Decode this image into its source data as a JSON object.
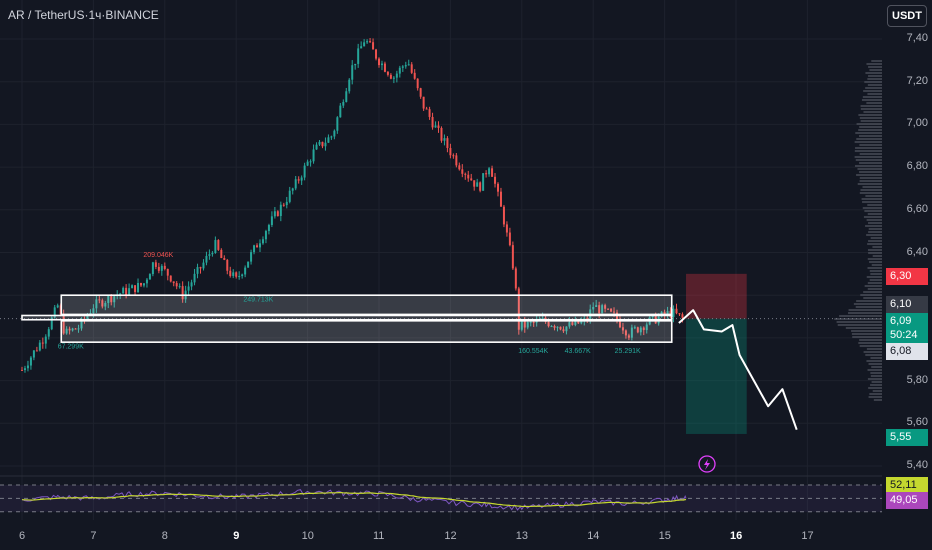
{
  "header": {
    "symbol": "AR / TetherUS",
    "sep1": " · ",
    "interval": "1ч",
    "sep2": " · ",
    "exchange": "BINANCE"
  },
  "currency_button": {
    "label": "USDT"
  },
  "colors": {
    "background": "#131722",
    "up": "#26a69a",
    "down": "#ef5350",
    "zone_border": "#ffffff",
    "stop_zone": "#f23645",
    "target_zone": "#089981",
    "rsi_line": "#7e57c2",
    "rsi_ma": "#c5d82f"
  },
  "price_axis": {
    "labels": [
      "7,40",
      "7,20",
      "7,00",
      "6,80",
      "6,60",
      "6,40",
      "5,80",
      "5,60",
      "5,40"
    ],
    "min": 5.4,
    "max": 7.4,
    "tags": [
      {
        "name": "stop-level-tag",
        "value": "6,30",
        "bg": "#f23645",
        "fg": "#ffffff"
      },
      {
        "name": "zone-top-tag",
        "value": "6,10",
        "bg": "#363a45",
        "fg": "#ffffff"
      },
      {
        "name": "last-price-tag",
        "value": "6,09",
        "bg": "#089981",
        "fg": "#ffffff"
      },
      {
        "name": "countdown-tag",
        "value": "50:24",
        "bg": "#089981",
        "fg": "#ffffff"
      },
      {
        "name": "zone-bottom-tag",
        "value": "6,08",
        "bg": "#e0e3eb",
        "fg": "#131722"
      },
      {
        "name": "target-level-tag",
        "value": "5,55",
        "bg": "#089981",
        "fg": "#ffffff"
      },
      {
        "name": "rsi-value-tag",
        "value": "52,11",
        "bg": "#c5d82f",
        "fg": "#131722"
      },
      {
        "name": "rsi-ma-tag",
        "value": "49,05",
        "bg": "#ab47bc",
        "fg": "#ffffff"
      }
    ]
  },
  "time_axis": {
    "labels": [
      {
        "text": "6",
        "bold": false
      },
      {
        "text": "7",
        "bold": false
      },
      {
        "text": "8",
        "bold": false
      },
      {
        "text": "9",
        "bold": true
      },
      {
        "text": "10",
        "bold": false
      },
      {
        "text": "11",
        "bold": false
      },
      {
        "text": "12",
        "bold": false
      },
      {
        "text": "13",
        "bold": false
      },
      {
        "text": "14",
        "bold": false
      },
      {
        "text": "15",
        "bold": false
      },
      {
        "text": "16",
        "bold": true
      },
      {
        "text": "17",
        "bold": false
      }
    ]
  },
  "chart_data": {
    "type": "candlestick",
    "title": "AR / TetherUS · 1ч · BINANCE",
    "x_unit": "day of month",
    "y_range": [
      5.4,
      7.45
    ],
    "close_path": [
      {
        "x": 6.0,
        "y": 5.85
      },
      {
        "x": 6.3,
        "y": 6.0
      },
      {
        "x": 6.5,
        "y": 6.15
      },
      {
        "x": 6.6,
        "y": 6.02
      },
      {
        "x": 6.8,
        "y": 6.05
      },
      {
        "x": 7.0,
        "y": 6.15
      },
      {
        "x": 7.3,
        "y": 6.2
      },
      {
        "x": 7.7,
        "y": 6.25
      },
      {
        "x": 7.85,
        "y": 6.36
      },
      {
        "x": 8.1,
        "y": 6.28
      },
      {
        "x": 8.25,
        "y": 6.2
      },
      {
        "x": 8.6,
        "y": 6.38
      },
      {
        "x": 8.7,
        "y": 6.44
      },
      {
        "x": 8.85,
        "y": 6.33
      },
      {
        "x": 9.0,
        "y": 6.27
      },
      {
        "x": 9.4,
        "y": 6.5
      },
      {
        "x": 9.8,
        "y": 6.7
      },
      {
        "x": 10.1,
        "y": 6.88
      },
      {
        "x": 10.35,
        "y": 6.95
      },
      {
        "x": 10.6,
        "y": 7.25
      },
      {
        "x": 10.8,
        "y": 7.4
      },
      {
        "x": 11.0,
        "y": 7.3
      },
      {
        "x": 11.2,
        "y": 7.22
      },
      {
        "x": 11.4,
        "y": 7.3
      },
      {
        "x": 11.6,
        "y": 7.1
      },
      {
        "x": 11.85,
        "y": 6.95
      },
      {
        "x": 12.1,
        "y": 6.82
      },
      {
        "x": 12.4,
        "y": 6.7
      },
      {
        "x": 12.55,
        "y": 6.82
      },
      {
        "x": 12.75,
        "y": 6.55
      },
      {
        "x": 12.9,
        "y": 6.3
      },
      {
        "x": 12.95,
        "y": 6.05
      },
      {
        "x": 13.3,
        "y": 6.08
      },
      {
        "x": 13.6,
        "y": 6.05
      },
      {
        "x": 13.9,
        "y": 6.08
      },
      {
        "x": 14.0,
        "y": 6.15
      },
      {
        "x": 14.3,
        "y": 6.1
      },
      {
        "x": 14.5,
        "y": 6.02
      },
      {
        "x": 14.8,
        "y": 6.08
      },
      {
        "x": 15.1,
        "y": 6.12
      },
      {
        "x": 15.25,
        "y": 6.09
      }
    ],
    "volume_labels": [
      {
        "x": 7.7,
        "y": 6.38,
        "text": "209.046K",
        "color": "#ef5350"
      },
      {
        "x": 9.1,
        "y": 6.17,
        "text": "249.713K",
        "color": "#26a69a"
      },
      {
        "x": 6.5,
        "y": 5.95,
        "text": "67.299K",
        "color": "#26a69a"
      },
      {
        "x": 12.95,
        "y": 5.93,
        "text": "160.554K",
        "color": "#26a69a"
      },
      {
        "x": 13.6,
        "y": 5.93,
        "text": "43.667K",
        "color": "#26a69a"
      },
      {
        "x": 14.3,
        "y": 5.93,
        "text": "25.291K",
        "color": "#26a69a"
      }
    ],
    "zones": [
      {
        "name": "upper-resistance-zone",
        "x0": 6.55,
        "x1": 15.1,
        "top": 6.2,
        "bottom": 6.11
      },
      {
        "name": "pivot-line-zone",
        "x0": 6.0,
        "x1": 15.1,
        "top": 6.105,
        "bottom": 6.085
      },
      {
        "name": "lower-support-zone",
        "x0": 6.55,
        "x1": 15.1,
        "top": 6.08,
        "bottom": 5.98
      }
    ],
    "short_position": {
      "entry": 6.09,
      "stop": 6.3,
      "target": 5.55,
      "x0": 15.3,
      "x1": 16.15
    },
    "projection": [
      {
        "x": 15.2,
        "y": 6.07
      },
      {
        "x": 15.4,
        "y": 6.13
      },
      {
        "x": 15.55,
        "y": 6.04
      },
      {
        "x": 15.8,
        "y": 6.03
      },
      {
        "x": 15.95,
        "y": 6.06
      },
      {
        "x": 16.05,
        "y": 5.92
      },
      {
        "x": 16.25,
        "y": 5.8
      },
      {
        "x": 16.45,
        "y": 5.68
      },
      {
        "x": 16.65,
        "y": 5.76
      },
      {
        "x": 16.85,
        "y": 5.57
      }
    ],
    "rsi": {
      "upper": 70,
      "mid": 50,
      "lower": 30,
      "values": [
        {
          "x": 6.0,
          "y": 48
        },
        {
          "x": 6.5,
          "y": 52
        },
        {
          "x": 7.0,
          "y": 50
        },
        {
          "x": 7.5,
          "y": 56
        },
        {
          "x": 8.0,
          "y": 58
        },
        {
          "x": 8.5,
          "y": 54
        },
        {
          "x": 9.0,
          "y": 52
        },
        {
          "x": 9.5,
          "y": 56
        },
        {
          "x": 10.0,
          "y": 60
        },
        {
          "x": 10.5,
          "y": 58
        },
        {
          "x": 11.0,
          "y": 57
        },
        {
          "x": 11.5,
          "y": 49
        },
        {
          "x": 12.0,
          "y": 44
        },
        {
          "x": 12.5,
          "y": 40
        },
        {
          "x": 13.0,
          "y": 36
        },
        {
          "x": 13.5,
          "y": 40
        },
        {
          "x": 14.0,
          "y": 45
        },
        {
          "x": 14.5,
          "y": 42
        },
        {
          "x": 15.0,
          "y": 48
        },
        {
          "x": 15.3,
          "y": 52
        }
      ],
      "value": "52,11",
      "ma_value": "49,05"
    }
  }
}
